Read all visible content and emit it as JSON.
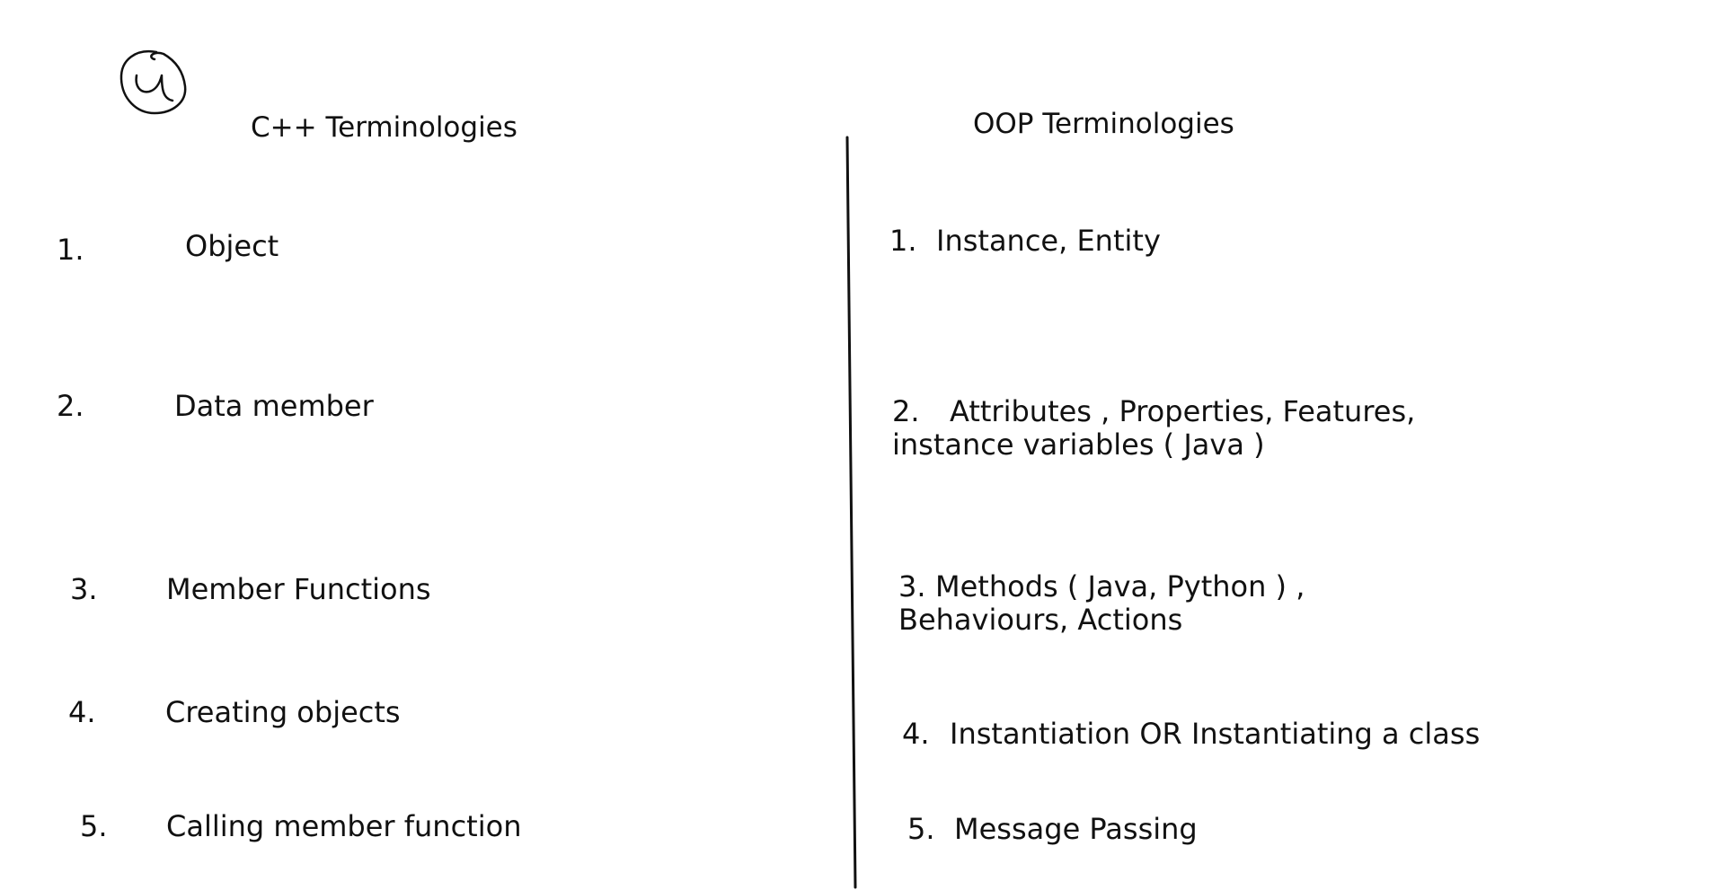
{
  "page_number_mark": "4",
  "left_column": {
    "heading": "C++ Terminologies",
    "items": [
      {
        "number": "1.",
        "term": "Object"
      },
      {
        "number": "2.",
        "term": "Data member"
      },
      {
        "number": "3.",
        "term": "Member Functions"
      },
      {
        "number": "4.",
        "term": "Creating objects"
      },
      {
        "number": "5.",
        "term": "Calling member function"
      }
    ]
  },
  "right_column": {
    "heading": "OOP Terminologies",
    "items": [
      {
        "number": "1.",
        "lines": [
          "Instance, Entity"
        ]
      },
      {
        "number": "2.",
        "lines": [
          "Attributes , Properties, Features,",
          "instance variables ( Java )"
        ]
      },
      {
        "number": "3.",
        "lines": [
          "Methods ( Java, Python ) ,",
          "Behaviours, Actions"
        ]
      },
      {
        "number": "4.",
        "lines": [
          "Instantiation OR Instantiating a class"
        ]
      },
      {
        "number": "5.",
        "lines": [
          "Message Passing"
        ]
      }
    ]
  },
  "colors": {
    "ink": "#111111",
    "background": "#ffffff"
  }
}
